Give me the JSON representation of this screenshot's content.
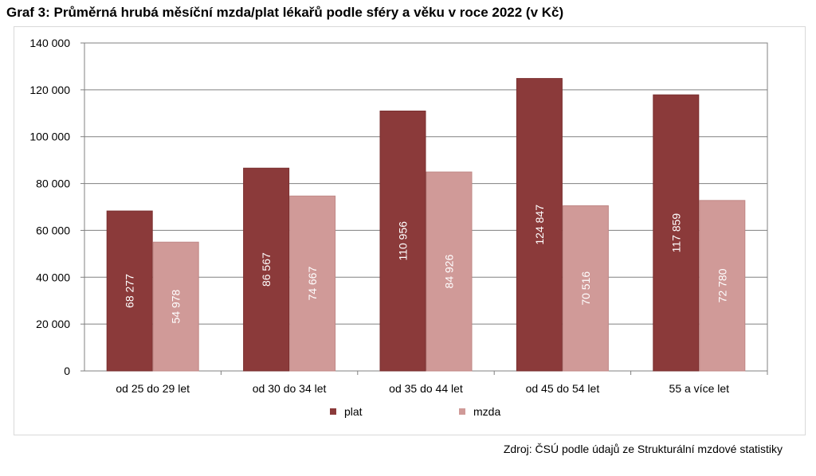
{
  "title": "Graf 3: Průměrná hrubá měsíční mzda/plat lékařů podle sféry a věku v roce 2022 (v Kč)",
  "source": "Zdroj: ČSÚ podle údajů ze Strukturální mzdové statistiky",
  "chart_data": {
    "type": "bar",
    "categories": [
      "od 25 do 29 let",
      "od 30 do 34 let",
      "od 35 do 44 let",
      "od 45 do 54 let",
      "55 a více let"
    ],
    "series": [
      {
        "name": "plat",
        "color": "#8b3a3a",
        "values": [
          68277,
          86567,
          110956,
          124847,
          117859
        ],
        "labels": [
          "68 277",
          "86 567",
          "110 956",
          "124 847",
          "117 859"
        ]
      },
      {
        "name": "mzda",
        "color": "#d09a98",
        "values": [
          54978,
          74667,
          84926,
          70516,
          72780
        ],
        "labels": [
          "54 978",
          "74 667",
          "84 926",
          "70 516",
          "72 780"
        ]
      }
    ],
    "ylim": [
      0,
      140000
    ],
    "yticks": [
      0,
      20000,
      40000,
      60000,
      80000,
      100000,
      120000,
      140000
    ],
    "ytick_labels": [
      "0",
      "20 000",
      "40 000",
      "60 000",
      "80 000",
      "100 000",
      "120 000",
      "140 000"
    ],
    "grid": true,
    "legend_position": "bottom"
  }
}
